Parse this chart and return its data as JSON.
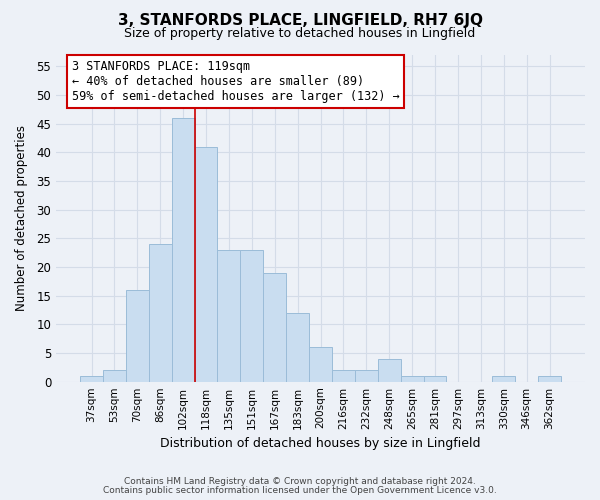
{
  "title": "3, STANFORDS PLACE, LINGFIELD, RH7 6JQ",
  "subtitle": "Size of property relative to detached houses in Lingfield",
  "xlabel": "Distribution of detached houses by size in Lingfield",
  "ylabel": "Number of detached properties",
  "bar_color": "#c9ddf0",
  "bar_edge_color": "#9bbcd8",
  "grid_color": "#d4dce8",
  "bin_labels": [
    "37sqm",
    "53sqm",
    "70sqm",
    "86sqm",
    "102sqm",
    "118sqm",
    "135sqm",
    "151sqm",
    "167sqm",
    "183sqm",
    "200sqm",
    "216sqm",
    "232sqm",
    "248sqm",
    "265sqm",
    "281sqm",
    "297sqm",
    "313sqm",
    "330sqm",
    "346sqm",
    "362sqm"
  ],
  "bar_heights": [
    1,
    2,
    16,
    24,
    46,
    41,
    23,
    23,
    19,
    12,
    6,
    2,
    2,
    4,
    1,
    1,
    0,
    0,
    1,
    0,
    1
  ],
  "ylim": [
    0,
    57
  ],
  "yticks": [
    0,
    5,
    10,
    15,
    20,
    25,
    30,
    35,
    40,
    45,
    50,
    55
  ],
  "vline_index": 5,
  "vline_color": "#cc0000",
  "annotation_text": "3 STANFORDS PLACE: 119sqm\n← 40% of detached houses are smaller (89)\n59% of semi-detached houses are larger (132) →",
  "annotation_box_color": "white",
  "annotation_box_edge": "#cc0000",
  "footer_line1": "Contains HM Land Registry data © Crown copyright and database right 2024.",
  "footer_line2": "Contains public sector information licensed under the Open Government Licence v3.0.",
  "background_color": "#edf1f7"
}
